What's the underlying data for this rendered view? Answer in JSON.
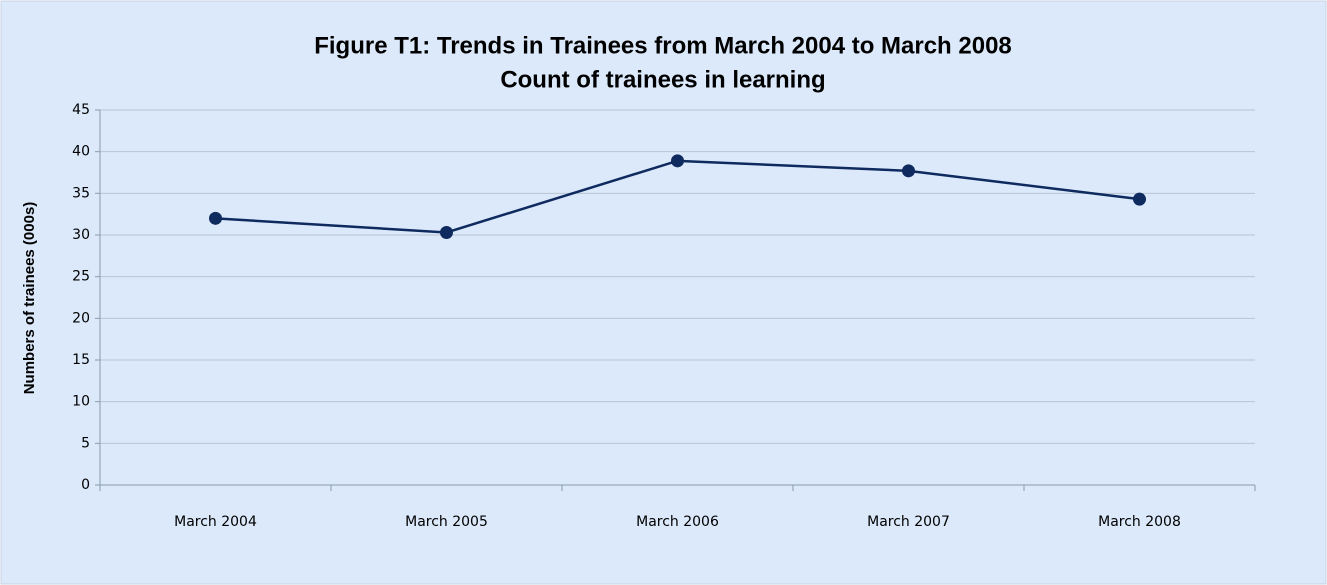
{
  "chart_data": {
    "type": "line",
    "title": "Figure T1: Trends in Trainees from March 2004 to March 2008",
    "subtitle": "Count of trainees in learning",
    "y_label": "Numbers of trainees (000s)",
    "categories": [
      "March 2004",
      "March 2005",
      "March 2006",
      "March 2007",
      "March 2008"
    ],
    "values": [
      32.0,
      30.3,
      38.9,
      37.7,
      34.3
    ],
    "color": "#0e2a5e",
    "ylim": [
      0,
      45
    ],
    "yticks": [
      0,
      5,
      10,
      15,
      20,
      25,
      30,
      35,
      40,
      45
    ],
    "grid": true
  }
}
